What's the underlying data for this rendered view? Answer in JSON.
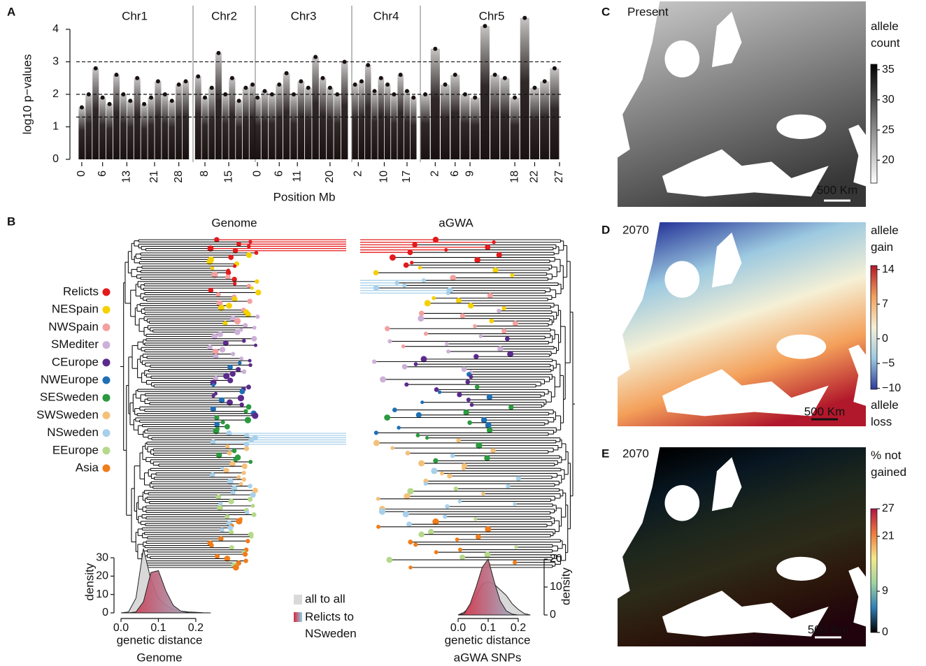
{
  "chart_data": [
    {
      "type": "manhattan",
      "panel": "A",
      "ylabel": "log10 p−values",
      "xlabel": "Position Mb",
      "ylim": [
        -0.2,
        4.45
      ],
      "yticks": [
        0,
        1,
        2,
        3,
        4
      ],
      "thresholds": [
        1.3,
        2,
        3
      ],
      "color": "#1a1111",
      "facets": [
        {
          "name": "Chr1",
          "xlim": [
            -1.6,
            32.1
          ],
          "xticks": [
            0,
            6,
            13,
            21,
            28
          ],
          "x": [
            0,
            2,
            4,
            6,
            8,
            10,
            12,
            14,
            16,
            18,
            20,
            22,
            24,
            26,
            28,
            30
          ],
          "values": [
            1.6,
            2.0,
            2.8,
            1.9,
            1.7,
            2.6,
            2.0,
            1.8,
            2.5,
            1.7,
            1.9,
            2.4,
            2.0,
            1.8,
            2.3,
            2.4
          ]
        },
        {
          "name": "Chr2",
          "xlim": [
            4.5,
            22.8
          ],
          "xticks": [
            8,
            15
          ],
          "x": [
            6,
            8,
            10,
            12,
            14,
            16,
            18,
            20,
            22
          ],
          "values": [
            2.55,
            1.9,
            2.2,
            3.27,
            2.0,
            2.5,
            1.8,
            2.2,
            2.3
          ]
        },
        {
          "name": "Chr3",
          "xlim": [
            -0.6,
            26.0
          ],
          "xticks": [
            0,
            6,
            11,
            20
          ],
          "x": [
            0,
            2,
            4,
            6,
            8,
            10,
            12,
            14,
            16,
            18,
            20,
            22,
            24
          ],
          "values": [
            1.9,
            2.1,
            2.0,
            2.3,
            2.65,
            2.0,
            2.4,
            2.2,
            3.15,
            2.5,
            2.2,
            2.0,
            3.0
          ]
        },
        {
          "name": "Chr4",
          "xlim": [
            0,
            21.1
          ],
          "xticks": [
            2,
            10,
            17
          ],
          "x": [
            1,
            3,
            5,
            7,
            9,
            11,
            13,
            15,
            17,
            19
          ],
          "values": [
            2.3,
            2.4,
            2.9,
            2.1,
            2.5,
            2.3,
            2.0,
            2.6,
            2.1,
            1.9
          ]
        },
        {
          "name": "Chr5",
          "xlim": [
            -1,
            27.7
          ],
          "xticks": [
            2,
            6,
            9,
            18,
            22,
            27
          ],
          "x": [
            0,
            2,
            4,
            6,
            8,
            10,
            12,
            14,
            16,
            18,
            20,
            22,
            24,
            26
          ],
          "values": [
            2.0,
            3.4,
            2.3,
            2.6,
            2.0,
            1.9,
            4.1,
            2.6,
            2.5,
            1.9,
            4.35,
            2.2,
            2.4,
            2.8
          ]
        }
      ]
    },
    {
      "type": "tree",
      "panel": "B",
      "titles": [
        "Genome",
        "aGWA"
      ],
      "legend": [
        {
          "name": "Relicts",
          "color": "#e41a1c"
        },
        {
          "name": "NESpain",
          "color": "#f5d100"
        },
        {
          "name": "NWSpain",
          "color": "#f4a0a0"
        },
        {
          "name": "SMediter",
          "color": "#cdb0d8"
        },
        {
          "name": "CEurope",
          "color": "#5b2a8c"
        },
        {
          "name": "NWEurope",
          "color": "#1f6fb5"
        },
        {
          "name": "SESweden",
          "color": "#2a9a3e"
        },
        {
          "name": "SWSweden",
          "color": "#f5c07a"
        },
        {
          "name": "NSweden",
          "color": "#a8d0ea"
        },
        {
          "name": "EEurope",
          "color": "#b5d98a"
        },
        {
          "name": "Asia",
          "color": "#f07d1a"
        }
      ]
    },
    {
      "type": "density",
      "xlabel": "genetic distance",
      "caption": "Genome",
      "ylabel": "density",
      "yaxis": "left",
      "xlim": [
        -0.02,
        0.26
      ],
      "ylim": [
        -1,
        37
      ],
      "xticks": [
        {
          "value": 0,
          "label": "0.0"
        },
        0.1,
        0.2
      ],
      "yticks": [
        0,
        10,
        20,
        30
      ],
      "x": [
        0,
        0.02,
        0.04,
        0.06,
        0.08,
        0.1,
        0.12,
        0.14,
        0.16,
        0.18,
        0.2,
        0.22,
        0.24
      ],
      "series": [
        {
          "name": "all to all",
          "color": "#d9d9d9",
          "values": [
            0,
            0.5,
            8,
            35,
            18,
            8,
            4,
            2,
            1,
            0.5,
            0.3,
            0.1,
            0
          ]
        },
        {
          "name": "Relicts to NSweden",
          "colors": [
            "#d7263d",
            "#8fd0e8"
          ],
          "values": [
            0,
            0,
            0.5,
            6,
            22,
            23,
            12,
            4,
            1,
            0.2,
            0,
            0,
            0
          ]
        }
      ]
    },
    {
      "type": "density",
      "xlabel": "genetic distance",
      "caption": "aGWA SNPs",
      "ylabel": "density",
      "yaxis": "right",
      "xlim": [
        -0.04,
        0.28
      ],
      "ylim": [
        -0.5,
        22.5
      ],
      "xticks": [
        {
          "value": 0,
          "label": "0.0"
        },
        0.1,
        0.2
      ],
      "yticks": [
        0,
        10,
        20
      ],
      "x": [
        0,
        0.02,
        0.04,
        0.06,
        0.08,
        0.1,
        0.12,
        0.14,
        0.16,
        0.18,
        0.2,
        0.22,
        0.24
      ],
      "series": [
        {
          "color": "#d9d9d9",
          "values": [
            0,
            1,
            3,
            7,
            11,
            12,
            11,
            9,
            7,
            4,
            2,
            0.5,
            0
          ]
        },
        {
          "colors": [
            "#d7263d",
            "#8fd0e8"
          ],
          "values": [
            0,
            0.5,
            4,
            10,
            17,
            20,
            12,
            5,
            1.5,
            0.3,
            0,
            0,
            0
          ]
        }
      ]
    },
    {
      "type": "map",
      "panel": "C",
      "title": "Present",
      "colorbar_label": "allele count",
      "clim": [
        16.2,
        35.9
      ],
      "cticks": [
        35,
        30,
        25,
        20
      ],
      "cmap": [
        "#ffffff",
        "#000000"
      ],
      "scale_label": "500 Km"
    },
    {
      "type": "map",
      "panel": "D",
      "title": "2070",
      "colorbar_label": "allele gain",
      "colorbar_label_low": "allele loss",
      "clim": [
        -10.2,
        14.8
      ],
      "cticks": [
        14,
        7,
        0,
        {
          "value": -5,
          "label": "−5"
        },
        {
          "value": -10,
          "label": "−10"
        }
      ],
      "cmap": [
        "#2c3c9c",
        "#9cc9e0",
        "#f5f0d6",
        "#f4a05a",
        "#b2182b"
      ],
      "scale_label": "500 Km"
    },
    {
      "type": "map",
      "panel": "E",
      "title": "2070",
      "colorbar_label": "% not gained",
      "clim": [
        0,
        27
      ],
      "cticks": [
        27,
        21,
        9,
        0
      ],
      "cmap": [
        "#000000",
        "#2e7eb8",
        "#9fd4a0",
        "#f5e98a",
        "#ef7a3c",
        "#b01545"
      ],
      "scale_label": "500 Km"
    }
  ]
}
